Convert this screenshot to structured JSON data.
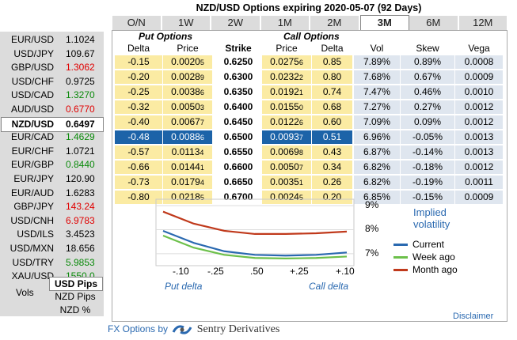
{
  "title": "NZD/USD Options expiring 2020-05-07 (92 Days)",
  "tabs": [
    "O/N",
    "1W",
    "2W",
    "1M",
    "2M",
    "3M",
    "6M",
    "12M"
  ],
  "active_tab": "3M",
  "pairs": [
    {
      "pair": "EUR/USD",
      "value": "1.1024",
      "color": "#000000"
    },
    {
      "pair": "USD/JPY",
      "value": "109.67",
      "color": "#000000"
    },
    {
      "pair": "GBP/USD",
      "value": "1.3062",
      "color": "#e00000"
    },
    {
      "pair": "USD/CHF",
      "value": "0.9725",
      "color": "#000000"
    },
    {
      "pair": "USD/CAD",
      "value": "1.3270",
      "color": "#0a8a0a"
    },
    {
      "pair": "AUD/USD",
      "value": "0.6770",
      "color": "#e00000"
    },
    {
      "pair": "NZD/USD",
      "value": "0.6497",
      "color": "#000000"
    },
    {
      "pair": "EUR/CAD",
      "value": "1.4629",
      "color": "#0a8a0a"
    },
    {
      "pair": "EUR/CHF",
      "value": "1.0721",
      "color": "#000000"
    },
    {
      "pair": "EUR/GBP",
      "value": "0.8440",
      "color": "#0a8a0a"
    },
    {
      "pair": "EUR/JPY",
      "value": "120.90",
      "color": "#000000"
    },
    {
      "pair": "EUR/AUD",
      "value": "1.6283",
      "color": "#000000"
    },
    {
      "pair": "GBP/JPY",
      "value": "143.24",
      "color": "#e00000"
    },
    {
      "pair": "USD/CNH",
      "value": "6.9783",
      "color": "#e00000"
    },
    {
      "pair": "USD/ILS",
      "value": "3.4523",
      "color": "#000000"
    },
    {
      "pair": "USD/MXN",
      "value": "18.656",
      "color": "#000000"
    },
    {
      "pair": "USD/TRY",
      "value": "5.9853",
      "color": "#0a8a0a"
    },
    {
      "pair": "XAU/USD",
      "value": "1550.0",
      "color": "#0a8a0a"
    }
  ],
  "selected_pair_index": 6,
  "pips_options": [
    "USD Pips",
    "NZD Pips",
    "NZD %"
  ],
  "selected_pips": "USD Pips",
  "vols_label": "Vols",
  "put_header": "Put Options",
  "call_header": "Call Options",
  "col_headers": {
    "delta": "Delta",
    "price": "Price",
    "strike": "Strike",
    "cprice": "Price",
    "cdelta": "Delta",
    "vol": "Vol",
    "skew": "Skew",
    "vega": "Vega"
  },
  "rows": [
    {
      "pd": "-0.15",
      "pp": "0.0020",
      "pps": "5",
      "k": "0.6250",
      "cp": "0.0275",
      "cps": "6",
      "cd": "0.85",
      "vol": "7.89%",
      "skew": "0.89%",
      "vega": "0.0008"
    },
    {
      "pd": "-0.20",
      "pp": "0.0028",
      "pps": "9",
      "k": "0.6300",
      "cp": "0.0232",
      "cps": "2",
      "cd": "0.80",
      "vol": "7.68%",
      "skew": "0.67%",
      "vega": "0.0009"
    },
    {
      "pd": "-0.25",
      "pp": "0.0038",
      "pps": "6",
      "k": "0.6350",
      "cp": "0.0192",
      "cps": "1",
      "cd": "0.74",
      "vol": "7.47%",
      "skew": "0.46%",
      "vega": "0.0010"
    },
    {
      "pd": "-0.32",
      "pp": "0.0050",
      "pps": "3",
      "k": "0.6400",
      "cp": "0.0155",
      "cps": "0",
      "cd": "0.68",
      "vol": "7.27%",
      "skew": "0.27%",
      "vega": "0.0012"
    },
    {
      "pd": "-0.40",
      "pp": "0.0067",
      "pps": "7",
      "k": "0.6450",
      "cp": "0.0122",
      "cps": "6",
      "cd": "0.60",
      "vol": "7.09%",
      "skew": "0.09%",
      "vega": "0.0012"
    },
    {
      "pd": "-0.48",
      "pp": "0.0088",
      "pps": "6",
      "k": "0.6500",
      "cp": "0.0093",
      "cps": "7",
      "cd": "0.51",
      "vol": "6.96%",
      "skew": "-0.05%",
      "vega": "0.0013"
    },
    {
      "pd": "-0.57",
      "pp": "0.0113",
      "pps": "4",
      "k": "0.6550",
      "cp": "0.0069",
      "cps": "8",
      "cd": "0.43",
      "vol": "6.87%",
      "skew": "-0.14%",
      "vega": "0.0013"
    },
    {
      "pd": "-0.66",
      "pp": "0.0144",
      "pps": "1",
      "k": "0.6600",
      "cp": "0.0050",
      "cps": "7",
      "cd": "0.34",
      "vol": "6.82%",
      "skew": "-0.18%",
      "vega": "0.0012"
    },
    {
      "pd": "-0.73",
      "pp": "0.0179",
      "pps": "4",
      "k": "0.6650",
      "cp": "0.0035",
      "cps": "1",
      "cd": "0.26",
      "vol": "6.82%",
      "skew": "-0.19%",
      "vega": "0.0011"
    },
    {
      "pd": "-0.80",
      "pp": "0.0218",
      "pps": "5",
      "k": "0.6700",
      "cp": "0.0024",
      "cps": "5",
      "cd": "0.20",
      "vol": "6.85%",
      "skew": "-0.15%",
      "vega": "0.0009"
    }
  ],
  "selected_row_index": 5,
  "chart_data": {
    "type": "line",
    "x_ticks": [
      "-.10",
      "-.25",
      ".50",
      "+.25",
      "+.10"
    ],
    "y_ticks": [
      "9%",
      "8%",
      "7%"
    ],
    "ylim": [
      6.5,
      9.2
    ],
    "series": [
      {
        "name": "Current",
        "color": "#2a69b0",
        "values": [
          7.95,
          7.45,
          7.1,
          6.95,
          6.92,
          6.95,
          7.05
        ]
      },
      {
        "name": "Week ago",
        "color": "#6cc04a",
        "values": [
          7.75,
          7.25,
          6.95,
          6.82,
          6.8,
          6.82,
          6.88
        ]
      },
      {
        "name": "Month ago",
        "color": "#c0391b",
        "values": [
          8.75,
          8.25,
          7.95,
          7.82,
          7.82,
          7.85,
          7.92
        ]
      }
    ],
    "legend_title": "Implied volatility",
    "put_label": "Put delta",
    "call_label": "Call delta"
  },
  "disclaimer": "Disclaimer",
  "footer": {
    "prefix": "FX Options by",
    "brand": "Sentry Derivatives"
  }
}
